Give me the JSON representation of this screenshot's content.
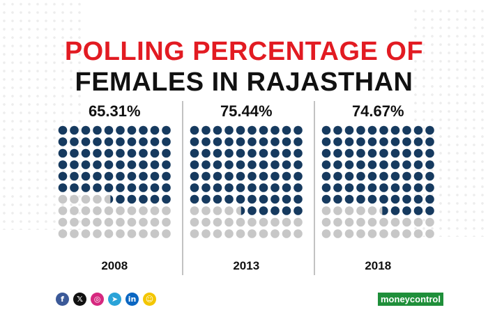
{
  "title": {
    "line1": "POLLING PERCENTAGE OF",
    "line2": "FEMALES IN RAJASTHAN"
  },
  "chart_data": {
    "type": "waffle",
    "grid": {
      "rows": 10,
      "cols": 10
    },
    "categories": [
      "2008",
      "2013",
      "2018"
    ],
    "values": [
      65.31,
      75.44,
      74.67
    ],
    "value_labels": [
      "65.31%",
      "75.44%",
      "74.67%"
    ],
    "unit": "%",
    "colors": {
      "filled": "#163a5f",
      "empty": "#c7c7c7"
    }
  },
  "social": [
    {
      "name": "facebook-icon",
      "glyph": "f",
      "color": "#3b5998"
    },
    {
      "name": "x-icon",
      "glyph": "𝕏",
      "color": "#111111"
    },
    {
      "name": "instagram-icon",
      "glyph": "◎",
      "color": "#d6287f"
    },
    {
      "name": "telegram-icon",
      "glyph": "➤",
      "color": "#2aa3d8"
    },
    {
      "name": "linkedin-icon",
      "glyph": "in",
      "color": "#0a66c2"
    },
    {
      "name": "snapchat-icon",
      "glyph": "☺",
      "color": "#f3c600"
    }
  ],
  "brand": "moneycontrol"
}
